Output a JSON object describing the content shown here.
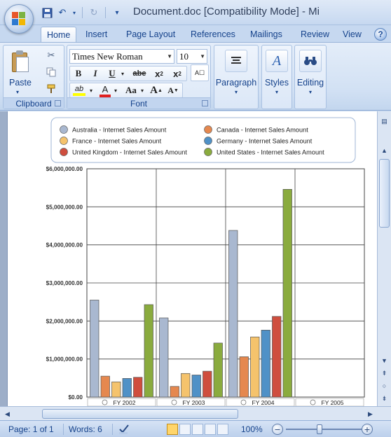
{
  "window": {
    "title": "Document.doc [Compatibility Mode] - Mi"
  },
  "tabs": [
    {
      "label": "Home",
      "active": true
    },
    {
      "label": "Insert"
    },
    {
      "label": "Page Layout"
    },
    {
      "label": "References"
    },
    {
      "label": "Mailings"
    },
    {
      "label": "Review"
    },
    {
      "label": "View"
    }
  ],
  "ribbon": {
    "clipboard": {
      "label": "Clipboard",
      "paste_label": "Paste"
    },
    "font": {
      "label": "Font",
      "font_name": "Times New Roman",
      "font_size": "10",
      "change_case_label": "Aa"
    },
    "paragraph": {
      "label": "Paragraph"
    },
    "styles": {
      "label": "Styles"
    },
    "editing": {
      "label": "Editing"
    }
  },
  "colors": {
    "highlight": "#ffff00",
    "font_color": "#e02020"
  },
  "chart_data": {
    "type": "bar",
    "categories": [
      "FY 2002",
      "FY 2003",
      "FY 2004",
      "FY 2005"
    ],
    "series": [
      {
        "name": "Australia - Internet Sales Amount",
        "color": "#a9b8d0",
        "values": [
          2550000,
          2080000,
          4380000,
          0
        ]
      },
      {
        "name": "Canada - Internet Sales Amount",
        "color": "#e5884f",
        "values": [
          550000,
          280000,
          1060000,
          0
        ]
      },
      {
        "name": "France - Internet Sales Amount",
        "color": "#f5c36c",
        "values": [
          400000,
          620000,
          1580000,
          0
        ]
      },
      {
        "name": "Germany - Internet Sales Amount",
        "color": "#4f91c7",
        "values": [
          490000,
          580000,
          1760000,
          0
        ]
      },
      {
        "name": "United Kingdom - Internet Sales Amount",
        "color": "#cf4e3e",
        "values": [
          520000,
          680000,
          2120000,
          0
        ]
      },
      {
        "name": "United States - Internet Sales Amount",
        "color": "#8aab3e",
        "values": [
          2430000,
          1420000,
          5460000,
          0
        ]
      }
    ],
    "y_ticks": [
      "$0.00",
      "$1,000,000.00",
      "$2,000,000.00",
      "$3,000,000.00",
      "$4,000,000.00",
      "$5,000,000.00",
      "$6,000,000.00"
    ],
    "ylim": [
      0,
      6000000
    ],
    "grid": true,
    "legend_position": "top"
  },
  "statusbar": {
    "page": "Page: 1 of 1",
    "words": "Words: 6",
    "zoom": "100%",
    "zoom_percent": 100
  }
}
